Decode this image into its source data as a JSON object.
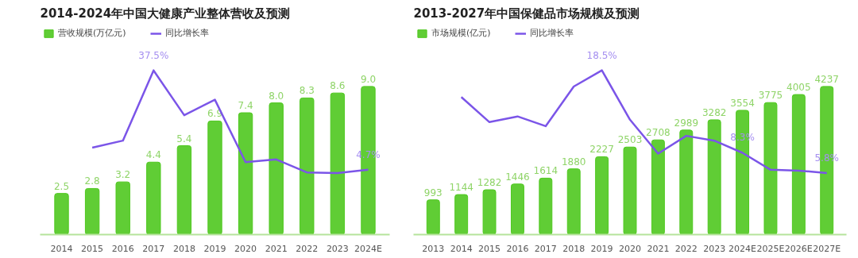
{
  "chart_data": [
    {
      "type": "bar",
      "title": "2014-2024年中国大健康产业整体营收及预测",
      "categories": [
        "2014",
        "2015",
        "2016",
        "2017",
        "2018",
        "2019",
        "2020",
        "2021",
        "2022",
        "2023",
        "2024E"
      ],
      "series": [
        {
          "name": "营收规模(万亿元)",
          "color": "#4fc81f",
          "values": [
            2.5,
            2.8,
            3.2,
            4.4,
            5.4,
            6.9,
            7.4,
            8.0,
            8.3,
            8.6,
            9.0
          ],
          "value_labels": [
            "2.5",
            "2.8",
            "3.2",
            "4.4",
            "5.4",
            "6.9",
            "7.4",
            "8.0",
            "8.3",
            "8.6",
            "9.0"
          ]
        },
        {
          "name": "同比增长率",
          "type": "line",
          "axis": "y2",
          "color": "#7b55e8",
          "values": [
            null,
            12.0,
            14.3,
            37.5,
            22.7,
            27.8,
            7.2,
            8.1,
            3.8,
            3.6,
            4.7
          ],
          "value_labels": [
            null,
            null,
            null,
            "37.5%",
            null,
            null,
            null,
            null,
            null,
            null,
            "4.7%"
          ]
        }
      ],
      "tick_labels": "x",
      "legend": "top left",
      "grid": false
    },
    {
      "type": "bar",
      "title": "2013-2027年中国保健品市场规模及预测",
      "categories": [
        "2013",
        "2014",
        "2015",
        "2016",
        "2017",
        "2018",
        "2019",
        "2020",
        "2021",
        "2022",
        "2023",
        "2024E",
        "2025E",
        "2026E",
        "2027E"
      ],
      "series": [
        {
          "name": "市场规模(亿元)",
          "color": "#4fc81f",
          "values": [
            993,
            1144,
            1282,
            1446,
            1614,
            1880,
            2227,
            2503,
            2708,
            2989,
            3282,
            3554,
            3775,
            4005,
            4237
          ]
        },
        {
          "name": "同比增长率",
          "type": "line",
          "axis": "y2",
          "color": "#7b55e8",
          "values": [
            null,
            15.2,
            12.1,
            12.8,
            11.6,
            16.5,
            18.5,
            12.4,
            8.2,
            10.4,
            9.8,
            8.3,
            6.2,
            6.1,
            5.8
          ],
          "value_labels": [
            null,
            null,
            null,
            null,
            null,
            null,
            "18.5%",
            null,
            null,
            null,
            null,
            "8.3%",
            null,
            null,
            "5.8%"
          ]
        }
      ],
      "data_labels": true,
      "tick_labels": "x",
      "legend": "top left",
      "grid": false
    }
  ]
}
